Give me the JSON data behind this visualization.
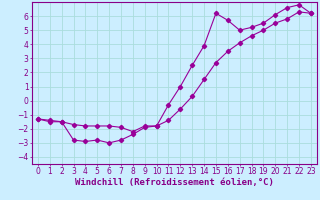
{
  "title": "",
  "xlabel": "Windchill (Refroidissement éolien,°C)",
  "ylabel": "",
  "background_color": "#cceeff",
  "line_color": "#990099",
  "marker": "D",
  "markersize": 2.2,
  "linewidth": 0.8,
  "xlim": [
    -0.5,
    23.5
  ],
  "ylim": [
    -4.5,
    7.0
  ],
  "yticks": [
    -4,
    -3,
    -2,
    -1,
    0,
    1,
    2,
    3,
    4,
    5,
    6
  ],
  "xticks": [
    0,
    1,
    2,
    3,
    4,
    5,
    6,
    7,
    8,
    9,
    10,
    11,
    12,
    13,
    14,
    15,
    16,
    17,
    18,
    19,
    20,
    21,
    22,
    23
  ],
  "series1_x": [
    0,
    1,
    2,
    3,
    4,
    5,
    6,
    7,
    8,
    9,
    10,
    11,
    12,
    13,
    14,
    15,
    16,
    17,
    18,
    19,
    20,
    21,
    22,
    23
  ],
  "series1_y": [
    -1.3,
    -1.4,
    -1.5,
    -2.8,
    -2.9,
    -2.8,
    -3.0,
    -2.8,
    -2.4,
    -1.9,
    -1.8,
    -0.3,
    1.0,
    2.5,
    3.9,
    6.2,
    5.7,
    5.0,
    5.2,
    5.5,
    6.1,
    6.6,
    6.8,
    6.2
  ],
  "series2_x": [
    0,
    1,
    2,
    3,
    4,
    5,
    6,
    7,
    8,
    9,
    10,
    11,
    12,
    13,
    14,
    15,
    16,
    17,
    18,
    19,
    20,
    21,
    22,
    23
  ],
  "series2_y": [
    -1.3,
    -1.5,
    -1.5,
    -1.7,
    -1.8,
    -1.8,
    -1.8,
    -1.9,
    -2.2,
    -1.8,
    -1.8,
    -1.4,
    -0.6,
    0.3,
    1.5,
    2.7,
    3.5,
    4.1,
    4.6,
    5.0,
    5.5,
    5.8,
    6.3,
    6.2
  ],
  "grid_color": "#aadddd",
  "tick_labelsize": 5.5,
  "xlabel_fontsize": 6.5,
  "tick_color": "#880088",
  "spine_color": "#880088"
}
